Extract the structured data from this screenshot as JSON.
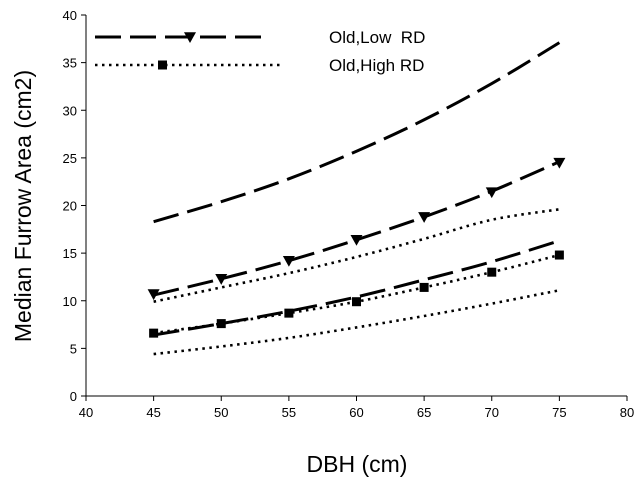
{
  "chart_data": {
    "type": "line",
    "title": "",
    "xlabel": "DBH (cm)",
    "ylabel": "Median Furrow Area (cm2)",
    "xlim": [
      40,
      80
    ],
    "ylim": [
      0,
      40
    ],
    "xticks": [
      40,
      45,
      50,
      55,
      60,
      65,
      70,
      75,
      80
    ],
    "yticks": [
      0,
      5,
      10,
      15,
      20,
      25,
      30,
      35,
      40
    ],
    "grid": false,
    "legend_position": "top-left",
    "marker_x": [
      45,
      50,
      55,
      60,
      65,
      70,
      75
    ],
    "curve_x": [
      45,
      50,
      55,
      60,
      65,
      70,
      75
    ],
    "series": [
      {
        "name": "Old,Low  RD",
        "color": "#000000",
        "style": "dashed",
        "marker": "triangle-down",
        "markers": [
          10.7,
          12.3,
          14.2,
          16.4,
          18.8,
          21.4,
          24.5
        ],
        "fit": [
          10.6,
          12.3,
          14.2,
          16.4,
          18.8,
          21.5,
          24.6
        ],
        "bounds": [
          [
            18.3,
            20.4,
            22.8,
            25.7,
            29.0,
            32.8,
            37.1
          ],
          [
            6.4,
            7.6,
            8.9,
            10.4,
            12.2,
            14.1,
            16.3
          ]
        ]
      },
      {
        "name": "Old,High RD",
        "color": "#000000",
        "style": "dotted",
        "marker": "square",
        "markers": [
          6.6,
          7.6,
          8.7,
          9.9,
          11.4,
          13.0,
          14.8
        ],
        "fit": [
          6.6,
          7.6,
          8.7,
          9.9,
          11.4,
          13.0,
          14.8
        ],
        "bounds": [
          [
            9.9,
            11.4,
            12.9,
            14.6,
            16.5,
            18.5,
            19.6
          ],
          [
            4.4,
            5.2,
            6.1,
            7.2,
            8.4,
            9.7,
            11.1
          ]
        ]
      }
    ]
  }
}
